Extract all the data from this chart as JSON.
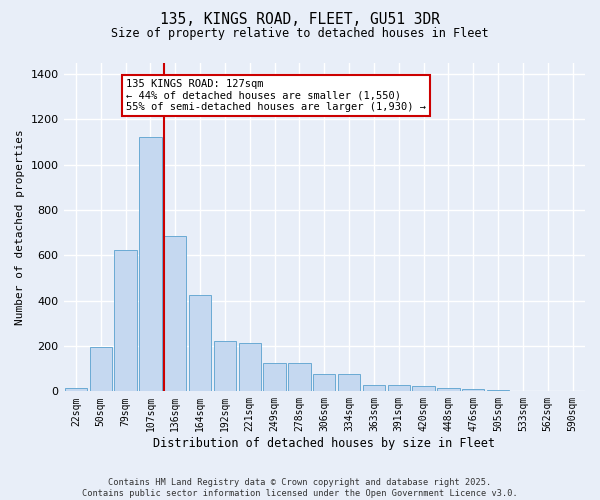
{
  "title": "135, KINGS ROAD, FLEET, GU51 3DR",
  "subtitle": "Size of property relative to detached houses in Fleet",
  "xlabel": "Distribution of detached houses by size in Fleet",
  "ylabel": "Number of detached properties",
  "categories": [
    "22sqm",
    "50sqm",
    "79sqm",
    "107sqm",
    "136sqm",
    "164sqm",
    "192sqm",
    "221sqm",
    "249sqm",
    "278sqm",
    "306sqm",
    "334sqm",
    "363sqm",
    "391sqm",
    "420sqm",
    "448sqm",
    "476sqm",
    "505sqm",
    "533sqm",
    "562sqm",
    "590sqm"
  ],
  "values": [
    15,
    195,
    625,
    1120,
    685,
    425,
    220,
    215,
    125,
    125,
    75,
    75,
    30,
    28,
    25,
    14,
    10,
    5,
    3,
    2,
    2
  ],
  "bar_color": "#c5d8f0",
  "bar_edge_color": "#6aaad4",
  "background_color": "#e8eef8",
  "grid_color": "#ffffff",
  "red_line_x": 3.55,
  "annotation_text": "135 KINGS ROAD: 127sqm\n← 44% of detached houses are smaller (1,550)\n55% of semi-detached houses are larger (1,930) →",
  "annotation_box_color": "#ffffff",
  "annotation_box_edge": "#cc0000",
  "red_line_color": "#cc0000",
  "footer_line1": "Contains HM Land Registry data © Crown copyright and database right 2025.",
  "footer_line2": "Contains public sector information licensed under the Open Government Licence v3.0.",
  "ylim": [
    0,
    1450
  ],
  "yticks": [
    0,
    200,
    400,
    600,
    800,
    1000,
    1200,
    1400
  ]
}
